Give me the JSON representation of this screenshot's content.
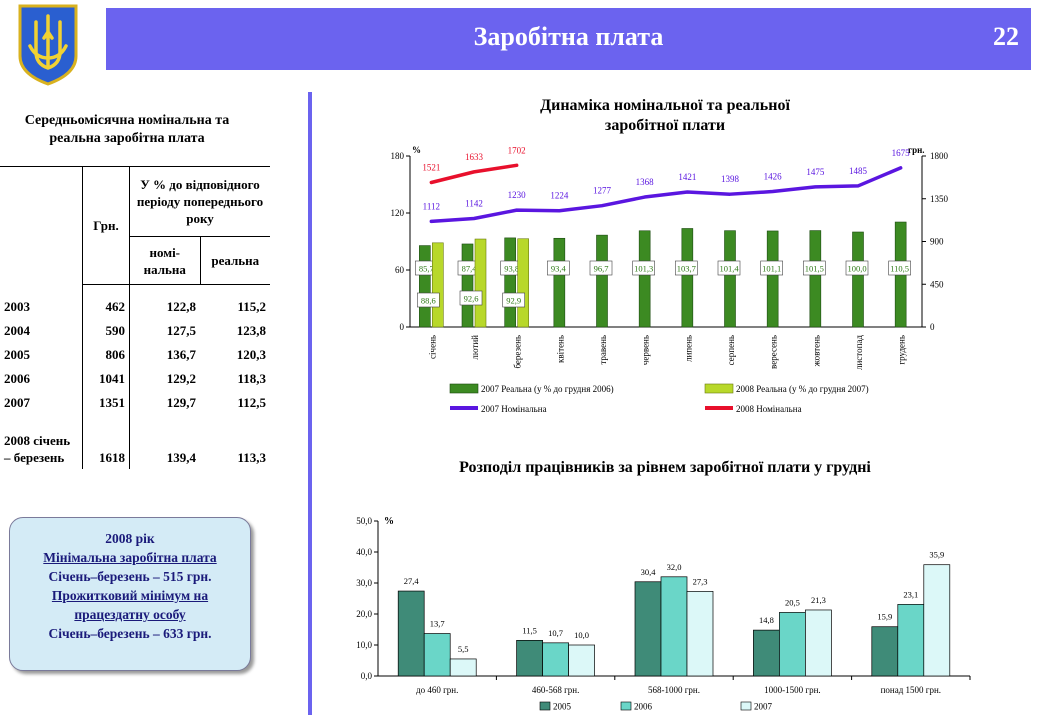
{
  "header": {
    "title": "Заробітна плата",
    "page_number": "22"
  },
  "table": {
    "title": "Середньомісячна номінальна та реальна  заробітна плата",
    "col_uah": "Грн.",
    "col_percent": "У % до відповідного періоду попереднього року",
    "col_nominal": "номі-нальна",
    "col_real": "реальна",
    "rows": [
      {
        "year": "2003",
        "uah": "462",
        "nominal": "122,8",
        "real": "115,2"
      },
      {
        "year": "2004",
        "uah": "590",
        "nominal": "127,5",
        "real": "123,8"
      },
      {
        "year": "2005",
        "uah": "806",
        "nominal": "136,7",
        "real": "120,3"
      },
      {
        "year": "2006",
        "uah": "1041",
        "nominal": "129,2",
        "real": "118,3"
      },
      {
        "year": "2007",
        "uah": "1351",
        "nominal": "129,7",
        "real": "112,5"
      },
      {
        "year": "2008 січень – березень",
        "uah": "1618",
        "nominal": "139,4",
        "real": "113,3"
      }
    ]
  },
  "info": {
    "year": "2008 рік",
    "min_wage_label": "Мінімальна заробітна плата",
    "min_wage_value": "Січень–березень – 515 грн.",
    "subsistence_label": "Прожитковий мінімум на працездатну особу",
    "subsistence_value": "Січень–березень – 633 грн."
  },
  "chart_data": [
    {
      "type": "bar",
      "title": "Динаміка номінальної та реальної заробітної плати",
      "ylabel_left": "%",
      "ylabel_right": "грн.",
      "ylim_left": [
        0,
        180
      ],
      "ylim_right": [
        0,
        1800
      ],
      "yticks_left": [
        "0",
        "60",
        "120",
        "180"
      ],
      "yticks_right": [
        "0",
        "450",
        "900",
        "1350",
        "1800"
      ],
      "categories": [
        "січень",
        "лютий",
        "березень",
        "квітень",
        "травень",
        "червень",
        "липень",
        "серпень",
        "вересень",
        "жовтень",
        "листопад",
        "грудень"
      ],
      "bars": [
        {
          "name": "2007 Реальна (у % до грудня 2006)",
          "color": "#3c8a22",
          "values": [
            85.7,
            87.4,
            93.8,
            93.4,
            96.7,
            101.3,
            103.7,
            101.4,
            101.1,
            101.5,
            100.0,
            110.5
          ],
          "labels": [
            "85,7",
            "87,4",
            "93,8",
            "93,4",
            "96,7",
            "101,3",
            "103,7",
            "101,4",
            "101,1",
            "101,5",
            "100,0",
            "110,5"
          ]
        },
        {
          "name": "2008 Реальна (у % до грудня 2007)",
          "color": "#b8d82a",
          "values": [
            88.6,
            92.6,
            92.9
          ],
          "labels": [
            "88,6",
            "92,6",
            "92,9"
          ]
        }
      ],
      "lines": [
        {
          "name": "2007 Номінальна",
          "color": "#5a16e0",
          "values": [
            1112,
            1142,
            1230,
            1224,
            1277,
            1368,
            1421,
            1398,
            1426,
            1475,
            1485,
            1675
          ],
          "labels": [
            "1112",
            "1142",
            "1230",
            "1224",
            "1277",
            "1368",
            "1421",
            "1398",
            "1426",
            "1475",
            "1485",
            "1675"
          ]
        },
        {
          "name": "2008 Номінальна",
          "color": "#e8102c",
          "values": [
            1521,
            1633,
            1702
          ],
          "labels": [
            "1521",
            "1633",
            "1702"
          ]
        }
      ]
    },
    {
      "type": "bar",
      "title": "Розподіл працівників за рівнем заробітної плати у грудні",
      "ylabel": "%",
      "ylim": [
        0,
        50
      ],
      "yticks": [
        "0,0",
        "10,0",
        "20,0",
        "30,0",
        "40,0",
        "50,0"
      ],
      "categories": [
        "до 460 грн.",
        "460-568 грн.",
        "568-1000 грн.",
        "1000-1500 грн.",
        "понад 1500 грн."
      ],
      "series": [
        {
          "name": "2005",
          "color": "#3f8b78",
          "values": [
            27.4,
            11.5,
            30.4,
            14.8,
            15.9
          ],
          "labels": [
            "27,4",
            "11,5",
            "30,4",
            "14,8",
            "15,9"
          ]
        },
        {
          "name": "2006",
          "color": "#6ad6c8",
          "values": [
            13.7,
            10.7,
            32.0,
            20.5,
            23.1
          ],
          "labels": [
            "13,7",
            "10,7",
            "32,0",
            "20,5",
            "23,1"
          ]
        },
        {
          "name": "2007",
          "color": "#dcf8f8",
          "values": [
            5.5,
            10.0,
            27.3,
            21.3,
            35.9
          ],
          "labels": [
            "5,5",
            "10,0",
            "27,3",
            "21,3",
            "35,9"
          ]
        }
      ]
    }
  ]
}
